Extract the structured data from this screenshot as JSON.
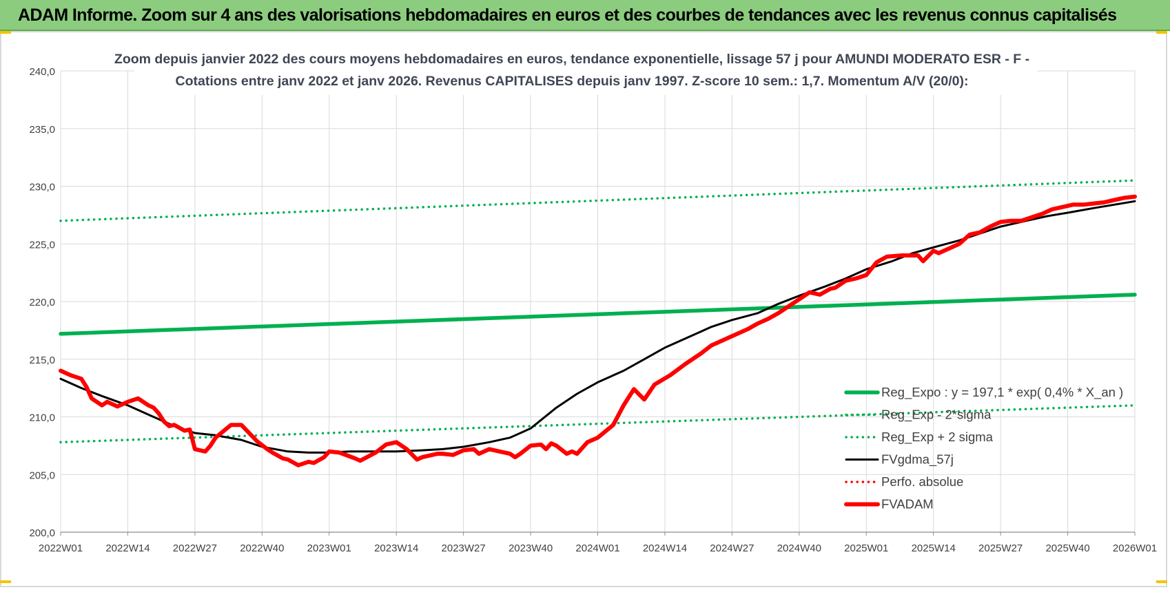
{
  "report": {
    "banner_title": "ADAM Informe. Zoom sur 4 ans des valorisations hebdomadaires en euros et des courbes de tendances avec les revenus connus capitalisés"
  },
  "colors": {
    "banner_bg": "#8ccc7f",
    "reg_expo": "#00b050",
    "fvgdma": "#000000",
    "perfo": "#ff0000",
    "fvadam": "#ff0000",
    "grid": "#d9d9d9"
  },
  "chart_data": {
    "type": "line",
    "title_line1": "Zoom depuis janvier 2022 des cours moyens hebdomadaires en euros, tendance exponentielle, lissage 57 j pour AMUNDI MODERATO ESR - F -",
    "title_line2": "Cotations entre janv 2022 et janv 2026. Revenus CAPITALISES depuis janv 1997. Z-score 10 sem.: 1,7. Momentum A/V (20/0):",
    "xlabel": "",
    "ylabel": "",
    "ylim": [
      200,
      240
    ],
    "yticks": [
      "200,0",
      "205,0",
      "210,0",
      "215,0",
      "220,0",
      "225,0",
      "230,0",
      "235,0",
      "240,0"
    ],
    "x_tick_labels": [
      "2022W01",
      "2022W14",
      "2022W27",
      "2022W40",
      "2023W01",
      "2023W14",
      "2023W27",
      "2023W40",
      "2024W01",
      "2024W14",
      "2024W27",
      "2024W40",
      "2025W01",
      "2025W14",
      "2025W27",
      "2025W40",
      "2026W01"
    ],
    "x_range_weeks": [
      0,
      208
    ],
    "grid": true,
    "legend_position": "bottom-right",
    "series": [
      {
        "name": "Reg_Expo : y = 197,1 * exp( 0,4% *  X_an )",
        "style": "solid-thick",
        "color": "#00b050",
        "x": [
          0,
          208
        ],
        "values": [
          217.2,
          220.6
        ]
      },
      {
        "name": "Reg_Exp - 2*sigma",
        "style": "dotted",
        "color": "#00b050",
        "x": [
          0,
          208
        ],
        "values": [
          207.8,
          211.0
        ]
      },
      {
        "name": "Reg_Exp + 2 sigma",
        "style": "dotted",
        "color": "#00b050",
        "x": [
          0,
          208
        ],
        "values": [
          227.0,
          230.5
        ]
      },
      {
        "name": "FVgdma_57j",
        "style": "solid",
        "color": "#000000",
        "x": [
          0,
          4,
          8,
          13,
          17,
          22,
          26,
          30,
          35,
          39,
          44,
          48,
          52,
          56,
          61,
          65,
          70,
          74,
          78,
          83,
          87,
          91,
          96,
          100,
          104,
          109,
          113,
          117,
          122,
          126,
          130,
          135,
          139,
          143,
          148,
          152,
          156,
          161,
          165,
          169,
          174,
          178,
          182,
          187,
          191,
          195,
          200,
          204,
          208
        ],
        "values": [
          213.3,
          212.5,
          211.8,
          211.0,
          210.2,
          209.2,
          208.6,
          208.4,
          208.0,
          207.4,
          207.0,
          206.9,
          206.9,
          207.0,
          207.0,
          207.0,
          207.1,
          207.2,
          207.4,
          207.8,
          208.2,
          209.0,
          210.8,
          212.0,
          213.0,
          214.0,
          215.0,
          216.0,
          217.0,
          217.8,
          218.4,
          219.0,
          219.8,
          220.5,
          221.3,
          222.0,
          222.8,
          223.5,
          224.2,
          224.7,
          225.3,
          225.9,
          226.5,
          227.0,
          227.4,
          227.7,
          228.1,
          228.4,
          228.7
        ]
      },
      {
        "name": "Perfo. absolue",
        "style": "dotted",
        "color": "#ff0000",
        "x": [],
        "values": []
      },
      {
        "name": "FVADAM",
        "style": "solid-thick",
        "color": "#ff0000",
        "x": [
          0,
          2,
          4,
          5,
          6,
          8,
          9,
          11,
          13,
          15,
          17,
          18,
          19,
          20,
          21,
          22,
          24,
          25,
          26,
          28,
          29,
          30,
          33,
          35,
          38,
          40,
          41,
          43,
          44,
          46,
          48,
          49,
          51,
          52,
          54,
          57,
          58,
          61,
          63,
          65,
          67,
          69,
          70,
          73,
          74,
          76,
          78,
          80,
          81,
          83,
          85,
          87,
          88,
          89,
          91,
          93,
          94,
          95,
          96,
          98,
          99,
          100,
          102,
          104,
          107,
          109,
          111,
          113,
          115,
          118,
          121,
          124,
          126,
          130,
          133,
          135,
          137,
          139,
          141,
          143,
          145,
          147,
          149,
          150,
          151,
          152,
          154,
          156,
          158,
          160,
          163,
          166,
          167,
          169,
          170,
          172,
          174,
          176,
          178,
          180,
          182,
          184,
          186,
          188,
          190,
          192,
          194,
          196,
          198,
          200,
          202,
          204,
          206,
          208
        ],
        "values": [
          214.0,
          213.6,
          213.3,
          212.6,
          211.6,
          211.0,
          211.3,
          210.9,
          211.3,
          211.6,
          211.0,
          210.8,
          210.3,
          209.6,
          209.2,
          209.3,
          208.8,
          208.9,
          207.2,
          207.0,
          207.5,
          208.2,
          209.3,
          209.3,
          207.9,
          207.2,
          206.9,
          206.4,
          206.3,
          205.8,
          206.1,
          206.0,
          206.5,
          207.0,
          206.9,
          206.4,
          206.2,
          206.9,
          207.6,
          207.8,
          207.2,
          206.3,
          206.5,
          206.8,
          206.8,
          206.7,
          207.1,
          207.2,
          206.8,
          207.2,
          207.0,
          206.8,
          206.5,
          206.8,
          207.5,
          207.6,
          207.2,
          207.7,
          207.5,
          206.8,
          207.0,
          206.8,
          207.8,
          208.2,
          209.3,
          211.0,
          212.4,
          211.5,
          212.8,
          213.6,
          214.6,
          215.5,
          216.2,
          217.0,
          217.6,
          218.1,
          218.5,
          219.0,
          219.6,
          220.2,
          220.8,
          220.6,
          221.1,
          221.2,
          221.5,
          221.8,
          222.0,
          222.3,
          223.4,
          223.9,
          224.0,
          224.0,
          223.5,
          224.4,
          224.2,
          224.6,
          225.0,
          225.8,
          226.0,
          226.5,
          226.9,
          227.0,
          227.0,
          227.3,
          227.6,
          228.0,
          228.2,
          228.4,
          228.4,
          228.5,
          228.6,
          228.8,
          229.0,
          229.1
        ]
      }
    ]
  }
}
